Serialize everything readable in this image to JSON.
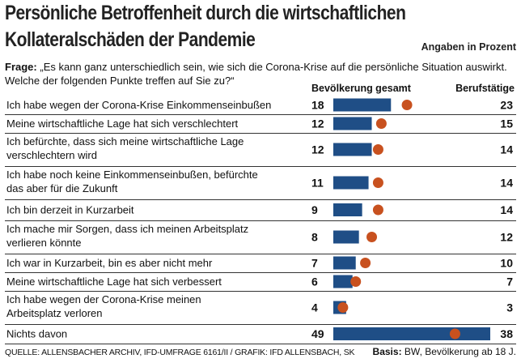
{
  "title_line1": "Persönliche Betroffenheit durch die wirtschaftlichen",
  "title_line2": "Kollateralschäden der Pandemie",
  "unit_note": "Angaben in Prozent",
  "question_label": "Frage:",
  "question_text": "„Es kann ganz unterschiedlich sein, wie sich die Corona-Krise auf die persönliche Situation auswirkt. Welche der folgenden Punkte treffen auf Sie zu?“",
  "source": "QUELLE: ALLENSBACHER ARCHIV, IFD-UMFRAGE 6161/II / GRAFIK: IFD ALLENSBACH, SK",
  "basis_label": "Basis:",
  "basis_text": "BW, Bevölkerung ab 18 J.",
  "colors": {
    "bar": "#1f4e86",
    "dot": "#c8511f",
    "rule": "#333333"
  },
  "chart_data": {
    "type": "bar",
    "orientation": "horizontal",
    "categories": [
      [
        "Ich habe wegen der Corona-Krise Einkommenseinbußen"
      ],
      [
        "Meine wirtschaftliche Lage hat sich verschlechtert"
      ],
      [
        "Ich befürchte, dass sich meine wirtschaftliche Lage",
        "verschlechtern wird"
      ],
      [
        "Ich habe noch keine Einkommenseinbußen, befürchte",
        "das aber für die Zukunft"
      ],
      [
        "Ich bin derzeit in Kurzarbeit"
      ],
      [
        "Ich mache mir Sorgen, dass ich meinen Arbeitsplatz",
        "verlieren könnte"
      ],
      [
        "Ich war in Kurzarbeit, bin es aber nicht mehr"
      ],
      [
        "Meine wirtschaftliche Lage hat sich verbessert"
      ],
      [
        "Ich habe wegen der Corona-Krise meinen",
        "Arbeitsplatz verloren"
      ],
      [
        "Nichts davon"
      ]
    ],
    "series": [
      {
        "name": "Bevölkerung gesamt",
        "mark": "bar",
        "values": [
          18,
          12,
          12,
          11,
          9,
          8,
          7,
          6,
          4,
          49
        ]
      },
      {
        "name": "Berufstätige",
        "mark": "dot",
        "values": [
          23,
          15,
          14,
          14,
          14,
          12,
          10,
          7,
          3,
          38
        ]
      }
    ],
    "xlim": [
      0,
      49
    ]
  }
}
